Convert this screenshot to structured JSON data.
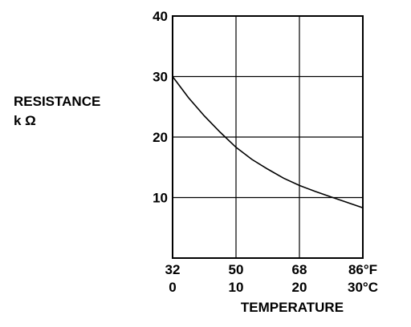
{
  "chart_data": {
    "type": "line",
    "ylabel_line1": "RESISTANCE",
    "ylabel_line2": "k Ω",
    "xlabel": "TEMPERATURE",
    "y_ticks": [
      10,
      20,
      30,
      40
    ],
    "ylim": [
      0,
      40
    ],
    "x_ticks_f": [
      "32",
      "50",
      "68",
      "86°F"
    ],
    "x_ticks_c": [
      "0",
      "10",
      "20",
      "30°C"
    ],
    "x_tick_values_c": [
      0,
      10,
      20,
      30
    ],
    "xlim_c": [
      0,
      30
    ],
    "grid": true,
    "series": [
      {
        "x": [
          0,
          2.5,
          5,
          7.5,
          10,
          12.5,
          15,
          17.5,
          20,
          22.5,
          25,
          27.5,
          30
        ],
        "y": [
          30,
          26.5,
          23.5,
          20.8,
          18.3,
          16.3,
          14.7,
          13.2,
          12,
          11,
          10.1,
          9.2,
          8.3
        ]
      }
    ]
  }
}
